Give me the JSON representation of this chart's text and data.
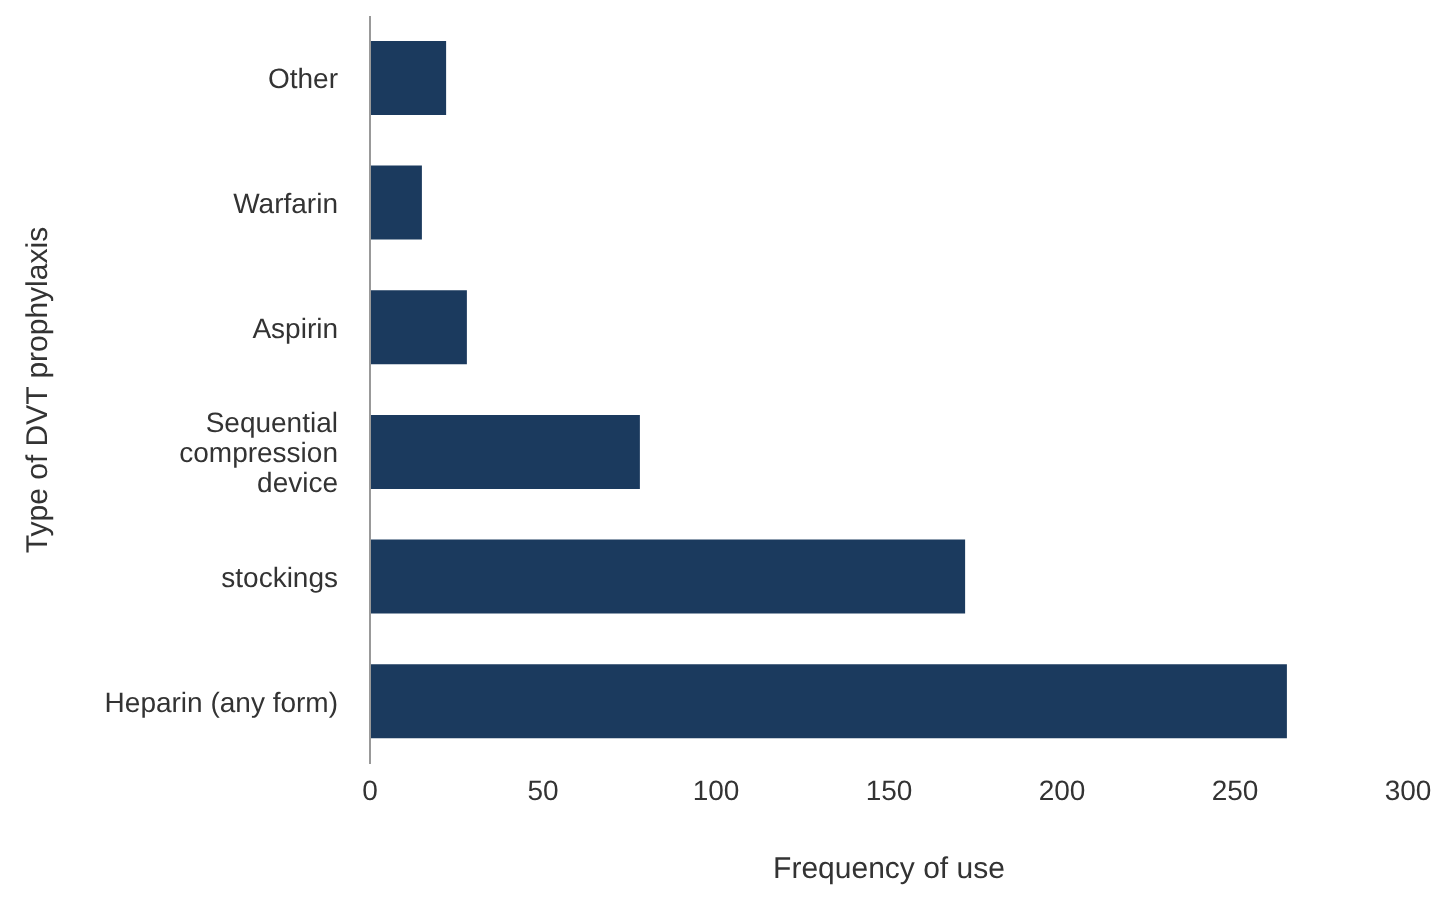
{
  "chart_data": {
    "type": "bar",
    "orientation": "horizontal",
    "xlabel": "Frequency of use",
    "ylabel": "Type of DVT prophylaxis",
    "categories": [
      "Other",
      "Warfarin",
      "Aspirin",
      "Sequential compression device",
      "stockings",
      "Heparin (any form)"
    ],
    "values": [
      22,
      15,
      28,
      78,
      172,
      265
    ],
    "color": "#1b3a5e",
    "xlim": [
      0,
      300
    ],
    "xticks": [
      0,
      50,
      100,
      150,
      200,
      250,
      300
    ]
  }
}
